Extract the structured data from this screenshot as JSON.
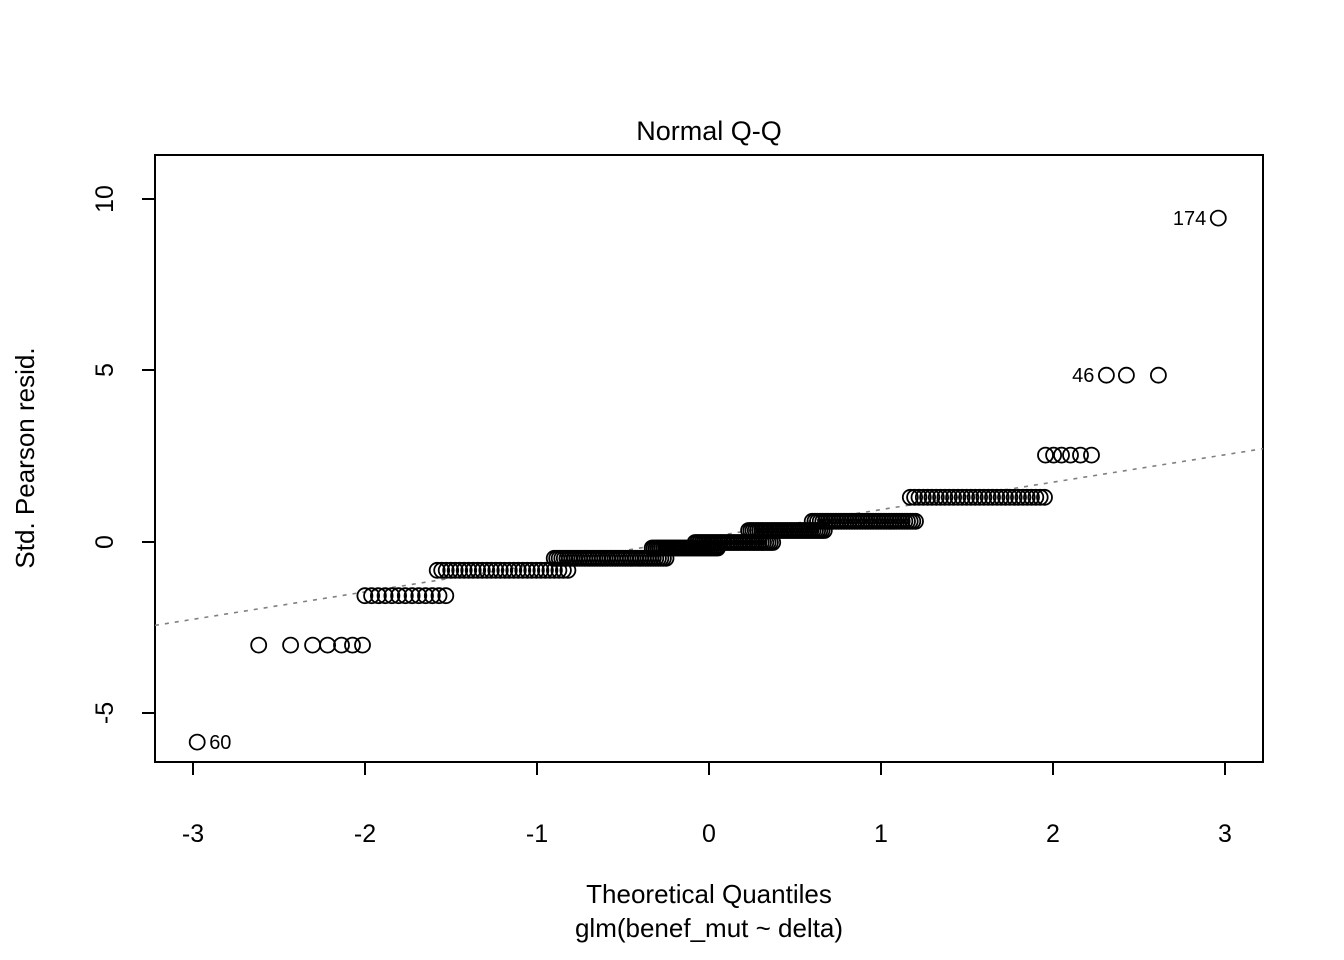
{
  "chart_data": {
    "type": "scatter",
    "subtype": "normal-qq-plot",
    "title": "Normal Q-Q",
    "xlabel": "Theoretical Quantiles",
    "xlabel_line2": "glm(benef_mut ~ delta)",
    "ylabel": "Std. Pearson resid.",
    "xlim": [
      -3.22,
      3.22
    ],
    "ylim": [
      -6.42,
      11.28
    ],
    "grid": "off",
    "x_ticks": {
      "values": [
        -3,
        -2,
        -1,
        0,
        1,
        2,
        3
      ],
      "labels": [
        "-3",
        "-2",
        "-1",
        "0",
        "1",
        "2",
        "3"
      ]
    },
    "y_ticks": {
      "values": [
        -5,
        0,
        5,
        10
      ],
      "labels": [
        "-5",
        "0",
        "5",
        "10"
      ]
    },
    "reference_line": {
      "style": "dotted",
      "color": "#808080",
      "intercept": 0.14,
      "slope": 0.8
    },
    "point_style": {
      "shape": "open-circle",
      "color": "#000000",
      "radius_px": 7.5
    },
    "steps": [
      {
        "v": -5.84,
        "q": [
          -2.975
        ],
        "label": "60",
        "label_side": "right"
      },
      {
        "v": -3.01,
        "q": [
          -2.617,
          -2.432,
          -2.304,
          -2.217,
          -2.136,
          -2.072,
          -2.014
        ]
      },
      {
        "v": -1.57,
        "q_min": -2.0,
        "q_max": -1.53,
        "n": 13
      },
      {
        "v": -0.83,
        "q_min": -1.58,
        "q_max": -0.82,
        "n": 30
      },
      {
        "v": -0.48,
        "q_min": -0.9,
        "q_max": -0.25,
        "n": 45
      },
      {
        "v": -0.18,
        "q_min": -0.33,
        "q_max": 0.05,
        "n": 35
      },
      {
        "v": -0.02,
        "q_min": -0.08,
        "q_max": 0.37,
        "n": 35
      },
      {
        "v": 0.33,
        "q_min": 0.23,
        "q_max": 0.67,
        "n": 35
      },
      {
        "v": 0.6,
        "q_min": 0.6,
        "q_max": 1.2,
        "n": 40
      },
      {
        "v": 1.3,
        "q_min": 1.17,
        "q_max": 1.95,
        "n": 32
      },
      {
        "v": 2.53,
        "q": [
          1.956,
          2.003,
          2.049,
          2.101,
          2.159,
          2.223
        ]
      },
      {
        "v": 4.86,
        "q": [
          2.31,
          2.426,
          2.612
        ],
        "label": "46",
        "label_side": "left"
      },
      {
        "v": 9.44,
        "q": [
          2.96
        ],
        "label": "174",
        "label_side": "left"
      }
    ],
    "labeled_outliers": [
      {
        "label": "60",
        "q": -2.975,
        "v": -5.84
      },
      {
        "label": "46",
        "q": 2.31,
        "v": 4.86
      },
      {
        "label": "174",
        "q": 2.96,
        "v": 9.44
      }
    ]
  }
}
